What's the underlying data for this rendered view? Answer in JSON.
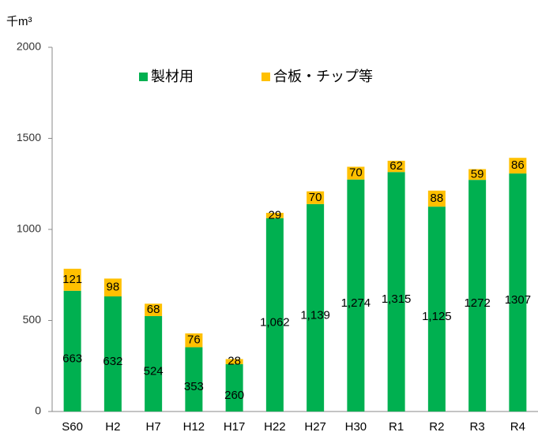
{
  "chart_data": {
    "type": "stacked_bar",
    "ylabel": "千m³",
    "categories": [
      "S60",
      "H2",
      "H7",
      "H12",
      "H17",
      "H22",
      "H27",
      "H30",
      "R1",
      "R2",
      "R3",
      "R4"
    ],
    "series": [
      {
        "name": "製材用",
        "color": "#00b050",
        "values": [
          663,
          632,
          524,
          353,
          260,
          1062,
          1139,
          1274,
          1315,
          1125,
          1272,
          1307
        ],
        "value_labels": [
          "663",
          "632",
          "524",
          "353",
          "260",
          "1,062",
          "1,139",
          "1,274",
          "1,315",
          "1,125",
          "1272",
          "1307"
        ]
      },
      {
        "name": "合板・チップ等",
        "color": "#ffc000",
        "values": [
          121,
          98,
          68,
          76,
          28,
          29,
          70,
          70,
          62,
          88,
          59,
          86
        ]
      }
    ],
    "ylim": [
      0,
      2000
    ],
    "yticks": [
      0,
      500,
      1000,
      1500,
      2000
    ],
    "grid": false
  }
}
